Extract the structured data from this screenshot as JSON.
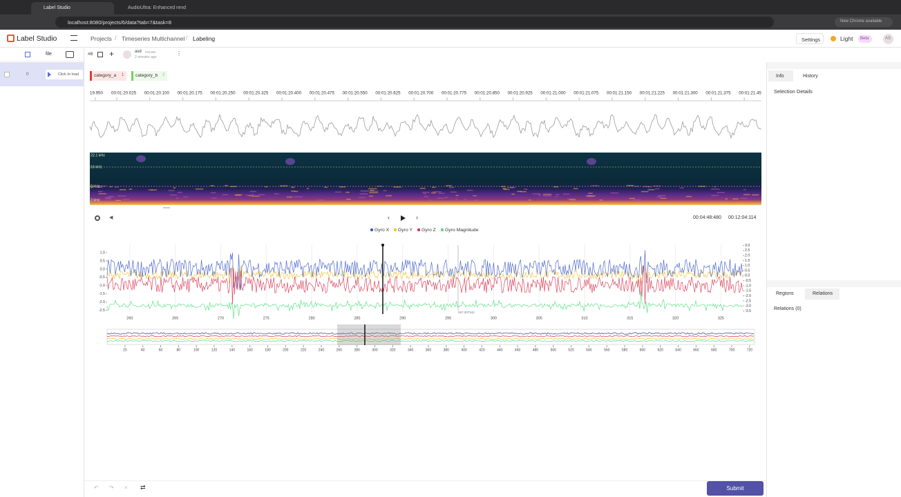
{
  "browser": {
    "tabs": [
      "Label Studio",
      "AudioUltra: Enhanced rend"
    ],
    "url": "localhost:8080/projects/6/data?tab=7&task=8",
    "update": "New Chrome available"
  },
  "header": {
    "logo": "Label Studio",
    "breadcrumbs": [
      "Projects",
      "Timeseries Multichannel",
      "Labeling"
    ],
    "settings": "Settings",
    "theme": "Light",
    "beta": "Beta",
    "avatar": "AS"
  },
  "sidebar": {
    "column": "file",
    "rows": [
      {
        "id": "0",
        "file": "Click to load"
      }
    ]
  },
  "toolbar": {
    "task": "#8",
    "user": "asd",
    "user_id": "#04496",
    "time": "2 minutes ago"
  },
  "labels": [
    {
      "name": "category_a",
      "hotkey": "1",
      "color": "#e53935"
    },
    {
      "name": "category_b",
      "hotkey": "2",
      "color": "#74d35a"
    }
  ],
  "audio": {
    "time_ticks": [
      "19.950",
      "00:01:20.025",
      "00:01:20.100",
      "00:01:20.175",
      "00:01:20.250",
      "00:01:20.325",
      "00:01:20.400",
      "00:01:20.475",
      "00:01:20.550",
      "00:01:20.625",
      "00:01:20.700",
      "00:01:20.775",
      "00:01:20.850",
      "00:01:20.925",
      "00:01:21.000",
      "00:01:21.075",
      "00:01:21.150",
      "00:01:21.225",
      "00:01:21.300",
      "00:01:21.375",
      "00:01:21.45"
    ],
    "freq_labels": [
      "22.1 kHz",
      "16 kHz",
      "8 kHz",
      "2 kHz"
    ]
  },
  "player": {
    "position": "00:04:48:480",
    "duration": "00:12:04:114"
  },
  "timeseries": {
    "series": [
      {
        "name": "Gyro X",
        "color": "#3d5bc4"
      },
      {
        "name": "Gyro Y",
        "color": "#f2c12e"
      },
      {
        "name": "Gyro Z",
        "color": "#d8334f"
      },
      {
        "name": "Gyro Magnitude",
        "color": "#4ee07d"
      }
    ],
    "ylim": [
      -2.6,
      1.5
    ],
    "yticks": [
      {
        "value": 1,
        "label": "1.0"
      },
      0.5,
      {
        "value": 0,
        "label": "0.0"
      },
      -0.5,
      {
        "value": -1,
        "label": "-1.0"
      },
      -1.5,
      {
        "value": -2,
        "label": "-2.0"
      },
      -2.5
    ],
    "y2lim": [
      -3.6,
      3.1
    ],
    "y2ticks": [
      {
        "value": 3,
        "label": "3.0"
      },
      2.5,
      {
        "value": 2,
        "label": "2.0"
      },
      1.5,
      {
        "value": 1,
        "label": "1.0"
      },
      0.5,
      {
        "value": 0,
        "label": "0.0"
      },
      -0.5,
      {
        "value": -1,
        "label": "-1.0"
      },
      -1.5,
      {
        "value": -2,
        "label": "-2.0"
      },
      -2.5,
      {
        "value": -3,
        "label": "-3.0"
      },
      -3.5
    ],
    "xlim": [
      257.5,
      327.4
    ],
    "xticks": [
      260,
      265,
      270,
      275,
      280,
      285,
      290,
      295,
      300,
      305,
      310,
      315,
      320,
      325
    ],
    "cursor_label": "297.307342"
  },
  "overview": {
    "xlim": [
      0,
      725.5
    ],
    "xticks": [
      20,
      40,
      60,
      80,
      100,
      120,
      140,
      160,
      180,
      200,
      220,
      240,
      260,
      280,
      300,
      320,
      340,
      360,
      380,
      400,
      420,
      440,
      460,
      480,
      500,
      520,
      540,
      560,
      580,
      600,
      620,
      640,
      660,
      680,
      700,
      720
    ]
  },
  "panel": {
    "tabs": [
      "Info",
      "History"
    ],
    "info_title": "Selection Details",
    "tabs2": [
      "Regions",
      "Relations"
    ],
    "relations": "Relations (0)"
  },
  "footer": {
    "submit": "Submit"
  }
}
